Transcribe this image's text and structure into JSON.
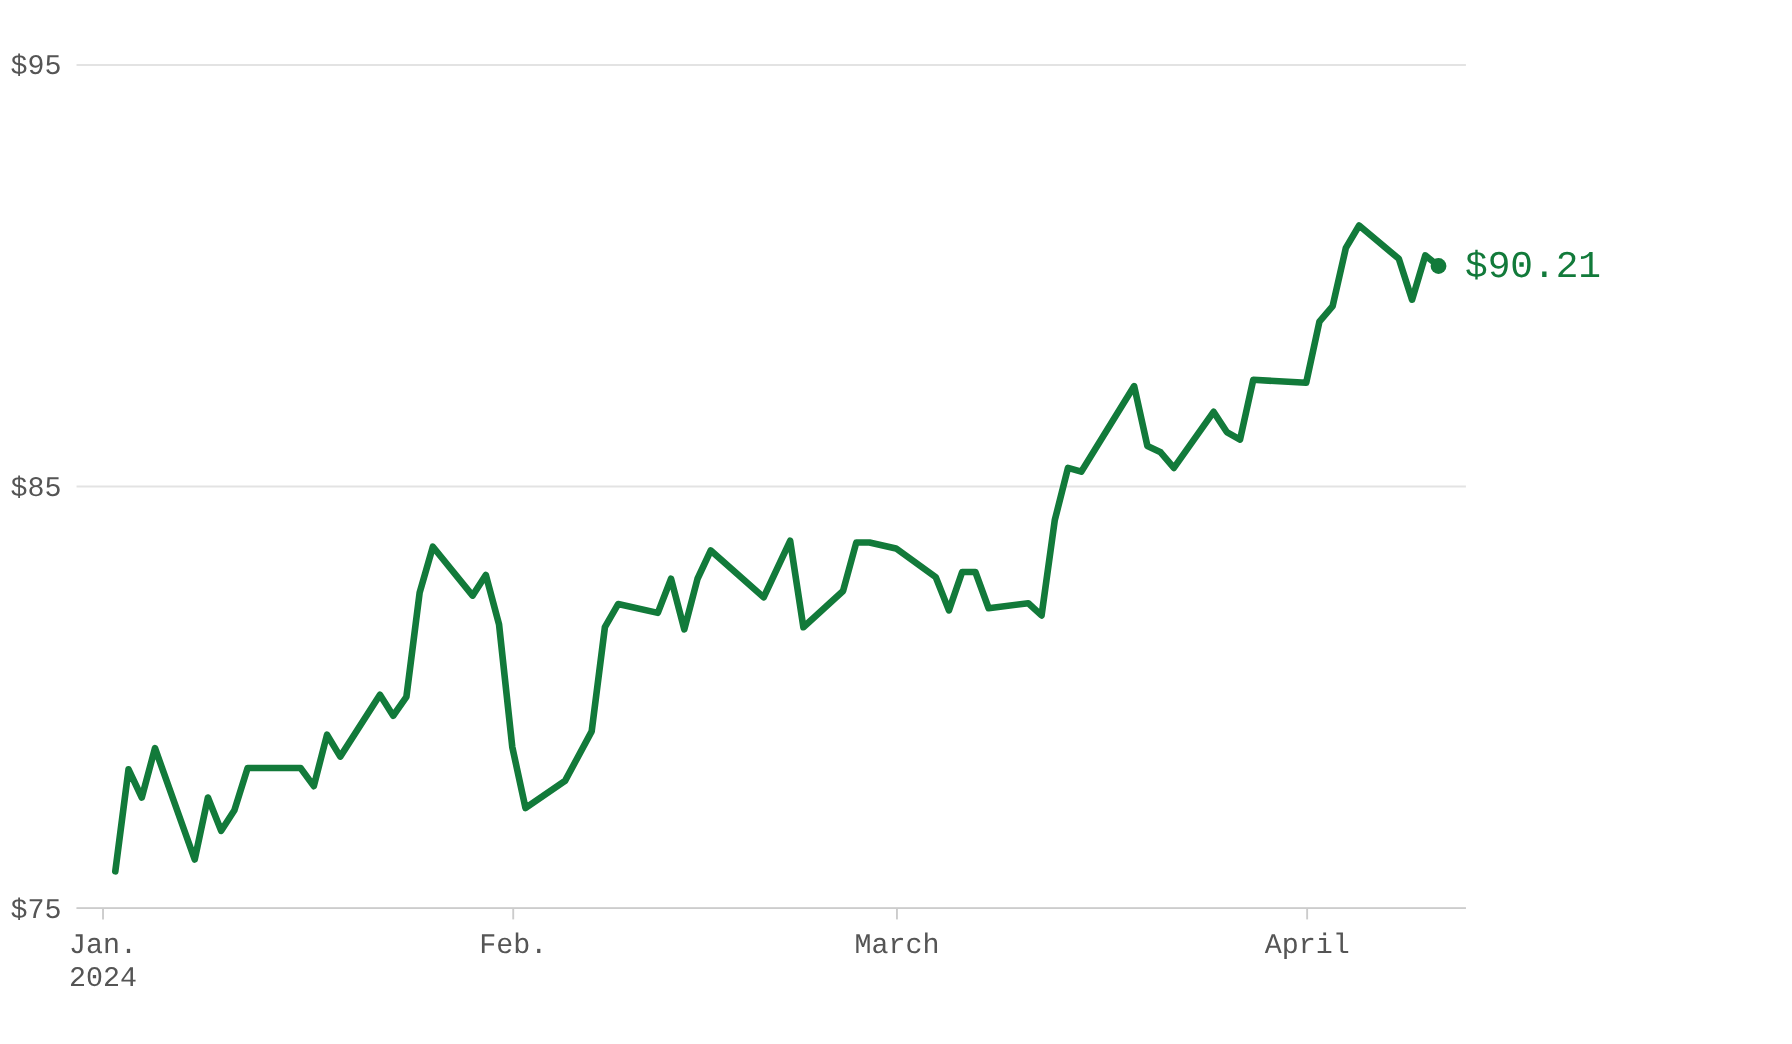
{
  "chart_data": {
    "type": "line",
    "x": [
      "2024-01-02",
      "2024-01-03",
      "2024-01-04",
      "2024-01-05",
      "2024-01-08",
      "2024-01-09",
      "2024-01-10",
      "2024-01-11",
      "2024-01-12",
      "2024-01-16",
      "2024-01-17",
      "2024-01-18",
      "2024-01-19",
      "2024-01-22",
      "2024-01-23",
      "2024-01-24",
      "2024-01-25",
      "2024-01-26",
      "2024-01-29",
      "2024-01-30",
      "2024-01-31",
      "2024-02-01",
      "2024-02-02",
      "2024-02-05",
      "2024-02-07",
      "2024-02-08",
      "2024-02-09",
      "2024-02-12",
      "2024-02-13",
      "2024-02-14",
      "2024-02-15",
      "2024-02-16",
      "2024-02-20",
      "2024-02-22",
      "2024-02-23",
      "2024-02-26",
      "2024-02-27",
      "2024-02-28",
      "2024-03-01",
      "2024-03-04",
      "2024-03-05",
      "2024-03-06",
      "2024-03-07",
      "2024-03-08",
      "2024-03-11",
      "2024-03-12",
      "2024-03-13",
      "2024-03-14",
      "2024-03-15",
      "2024-03-19",
      "2024-03-20",
      "2024-03-21",
      "2024-03-22",
      "2024-03-25",
      "2024-03-26",
      "2024-03-27",
      "2024-03-28",
      "2024-04-01",
      "2024-04-02",
      "2024-04-03",
      "2024-04-04",
      "2024-04-05",
      "2024-04-08",
      "2024-04-09",
      "2024-04-10",
      "2024-04-11"
    ],
    "series": [
      {
        "color": "#127a3a",
        "values": [
          75.85,
          78.27,
          77.6,
          78.77,
          76.13,
          77.6,
          76.81,
          77.3,
          78.3,
          78.3,
          77.87,
          79.09,
          78.57,
          80.04,
          79.54,
          79.99,
          82.46,
          83.55,
          82.39,
          82.88,
          81.71,
          78.8,
          77.35,
          78.0,
          79.17,
          81.64,
          82.19,
          81.98,
          82.79,
          81.59,
          82.79,
          83.46,
          82.35,
          83.69,
          81.64,
          82.5,
          83.65,
          83.65,
          83.51,
          82.83,
          82.04,
          82.95,
          82.95,
          82.09,
          82.21,
          81.92,
          84.18,
          85.42,
          85.33,
          87.36,
          85.94,
          85.79,
          85.42,
          86.75,
          86.27,
          86.09,
          87.51,
          87.44,
          88.89,
          89.26,
          90.64,
          91.17,
          90.38,
          89.41,
          90.46,
          90.21
        ]
      },
      {
        "type": "scatter",
        "color": "#127a3a",
        "x": [
          "2024-04-11"
        ],
        "values": [
          90.21
        ]
      }
    ],
    "xlim": [
      "2023-12-30",
      "2024-04-13"
    ],
    "xticks": [
      {
        "value": "2024-01-01",
        "label": "Jan.\n2024"
      },
      {
        "value": "2024-02-01",
        "label": "Feb."
      },
      {
        "value": "2024-03-01",
        "label": "March"
      },
      {
        "value": "2024-04-01",
        "label": "April"
      }
    ],
    "ylim": [
      75,
      95
    ],
    "yticks": [
      {
        "value": 75,
        "label": "$75"
      },
      {
        "value": 85,
        "label": "$85"
      },
      {
        "value": 95,
        "label": "$95"
      }
    ],
    "grid": "y",
    "line_style": "solid",
    "annotations": [
      {
        "text": "$90.21",
        "x": "2024-04-11",
        "y": 90.21
      }
    ]
  }
}
